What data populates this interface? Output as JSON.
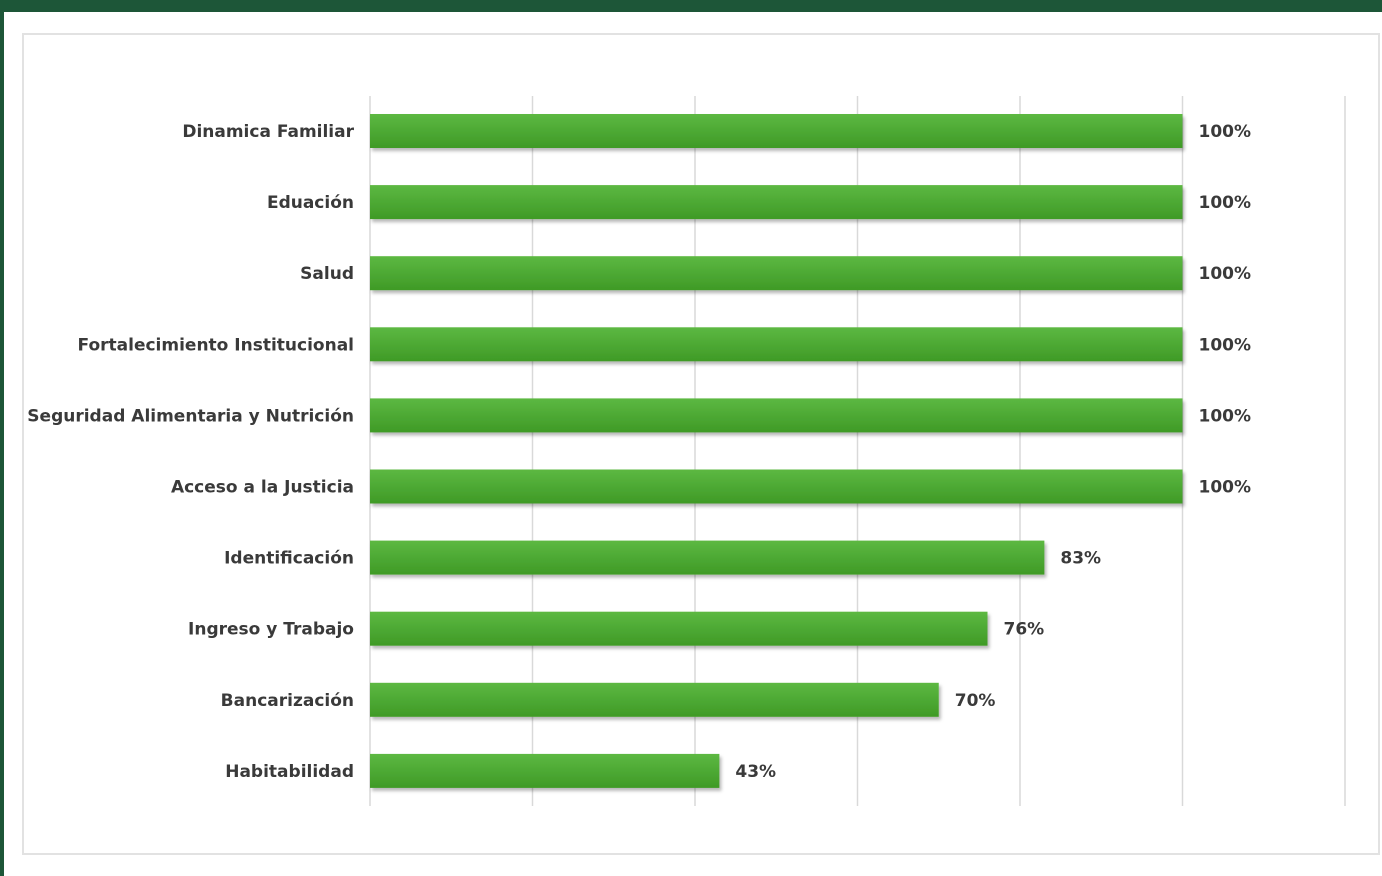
{
  "colors": {
    "background": "#1d5638",
    "bar_top": "#5cb842",
    "bar_bottom": "#3f9a26",
    "grid": "#d9d9d9",
    "text": "#3a3a3a"
  },
  "chart_data": {
    "type": "bar",
    "orientation": "horizontal",
    "categories": [
      "Dinamica Familiar",
      "Eduación",
      "Salud",
      "Fortalecimiento Institucional",
      "Seguridad Alimentaria y Nutrición",
      "Acceso a la Justicia",
      "Identificación",
      "Ingreso y Trabajo",
      "Bancarización",
      "Habitabilidad"
    ],
    "values": [
      100,
      100,
      100,
      100,
      100,
      100,
      83,
      76,
      70,
      43
    ],
    "value_labels": [
      "100%",
      "100%",
      "100%",
      "100%",
      "100%",
      "100%",
      "83%",
      "76%",
      "70%",
      "43%"
    ],
    "xlim": [
      0,
      120
    ],
    "grid": true,
    "legend": false,
    "title": "",
    "xlabel": "",
    "ylabel": ""
  }
}
